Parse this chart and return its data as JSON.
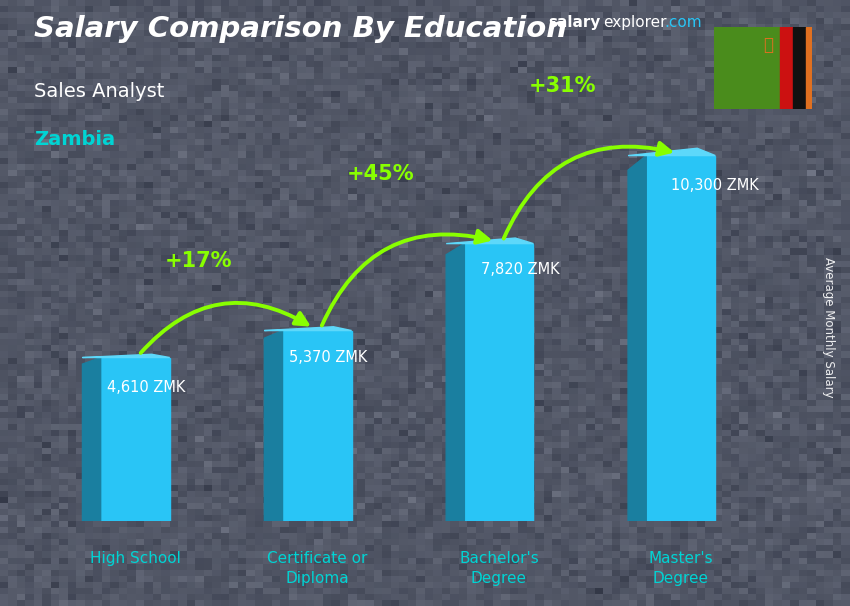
{
  "title": "Salary Comparison By Education",
  "subtitle": "Sales Analyst",
  "country": "Zambia",
  "ylabel": "Average Monthly Salary",
  "categories": [
    "High School",
    "Certificate or\nDiploma",
    "Bachelor's\nDegree",
    "Master's\nDegree"
  ],
  "values": [
    4610,
    5370,
    7820,
    10300
  ],
  "labels": [
    "4,610 ZMK",
    "5,370 ZMK",
    "7,820 ZMK",
    "10,300 ZMK"
  ],
  "pct_changes": [
    "+17%",
    "+45%",
    "+31%"
  ],
  "bar_face_color": "#29c5f6",
  "bar_left_color": "#1a7fa0",
  "bar_top_color": "#5dd8fa",
  "bg_color": "#555a62",
  "title_color": "#ffffff",
  "subtitle_color": "#ffffff",
  "country_color": "#00d4d4",
  "label_color": "#ffffff",
  "tick_label_color": "#00d4d4",
  "pct_color": "#88ff00",
  "arrow_color": "#88ff00",
  "ylim": [
    0,
    14000
  ],
  "bar_width": 0.38,
  "bar_gap": 1.0,
  "flag_green": "#4a8c1c",
  "flag_red": "#cc1111",
  "flag_black": "#111111",
  "flag_orange": "#e07020",
  "brand_color_salary": "#ffffff",
  "brand_color_explorer": "#ffffff",
  "brand_color_com": "#29c5f6"
}
